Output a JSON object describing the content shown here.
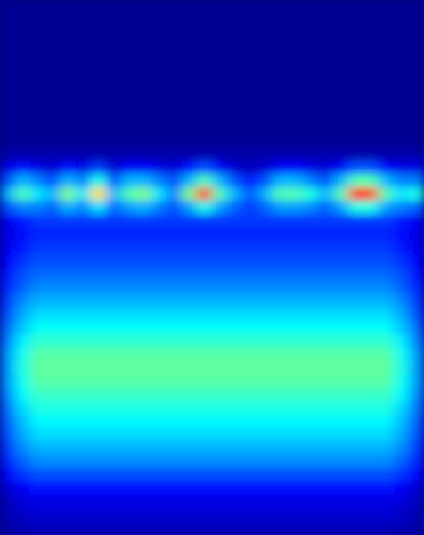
{
  "chart_data": {
    "type": "heatmap",
    "tick_labels": false,
    "zlim": [
      0,
      1
    ],
    "cells": [
      [
        0.02,
        0.02,
        0.02,
        0.02,
        0.02,
        0.02,
        0.02,
        0.02,
        0.02,
        0.02,
        0.02,
        0.02,
        0.02,
        0.02,
        0.02,
        0.02,
        0.02,
        0.02,
        0.02,
        0.02,
        0.02,
        0.02,
        0.02,
        0.02,
        0.02,
        0.02,
        0.02,
        0.02
      ],
      [
        0.02,
        0.02,
        0.02,
        0.02,
        0.02,
        0.02,
        0.02,
        0.02,
        0.02,
        0.02,
        0.02,
        0.02,
        0.02,
        0.02,
        0.02,
        0.02,
        0.02,
        0.02,
        0.02,
        0.02,
        0.02,
        0.02,
        0.02,
        0.02,
        0.02,
        0.02,
        0.02,
        0.02
      ],
      [
        0.02,
        0.02,
        0.02,
        0.02,
        0.02,
        0.02,
        0.02,
        0.02,
        0.02,
        0.02,
        0.02,
        0.02,
        0.02,
        0.02,
        0.02,
        0.02,
        0.02,
        0.02,
        0.02,
        0.02,
        0.02,
        0.02,
        0.02,
        0.02,
        0.02,
        0.02,
        0.02,
        0.02
      ],
      [
        0.02,
        0.02,
        0.02,
        0.02,
        0.02,
        0.02,
        0.02,
        0.02,
        0.02,
        0.02,
        0.02,
        0.02,
        0.02,
        0.02,
        0.02,
        0.02,
        0.02,
        0.02,
        0.02,
        0.02,
        0.02,
        0.02,
        0.02,
        0.02,
        0.02,
        0.02,
        0.02,
        0.02
      ],
      [
        0.02,
        0.02,
        0.02,
        0.02,
        0.02,
        0.02,
        0.02,
        0.02,
        0.02,
        0.02,
        0.02,
        0.02,
        0.02,
        0.02,
        0.02,
        0.02,
        0.02,
        0.02,
        0.02,
        0.02,
        0.02,
        0.02,
        0.02,
        0.02,
        0.02,
        0.02,
        0.02,
        0.02
      ],
      [
        0.02,
        0.02,
        0.02,
        0.02,
        0.02,
        0.02,
        0.02,
        0.02,
        0.02,
        0.02,
        0.02,
        0.02,
        0.02,
        0.02,
        0.02,
        0.02,
        0.02,
        0.02,
        0.02,
        0.02,
        0.02,
        0.02,
        0.02,
        0.02,
        0.02,
        0.02,
        0.02,
        0.02
      ],
      [
        0.02,
        0.02,
        0.02,
        0.02,
        0.02,
        0.02,
        0.02,
        0.02,
        0.02,
        0.02,
        0.02,
        0.02,
        0.02,
        0.02,
        0.02,
        0.02,
        0.02,
        0.02,
        0.02,
        0.02,
        0.02,
        0.02,
        0.02,
        0.02,
        0.02,
        0.02,
        0.02,
        0.02
      ],
      [
        0.02,
        0.02,
        0.02,
        0.02,
        0.02,
        0.02,
        0.02,
        0.02,
        0.02,
        0.02,
        0.02,
        0.02,
        0.02,
        0.02,
        0.02,
        0.02,
        0.02,
        0.02,
        0.02,
        0.02,
        0.02,
        0.02,
        0.02,
        0.02,
        0.02,
        0.02,
        0.02,
        0.02
      ],
      [
        0.02,
        0.02,
        0.02,
        0.02,
        0.02,
        0.02,
        0.02,
        0.02,
        0.02,
        0.02,
        0.02,
        0.02,
        0.02,
        0.02,
        0.02,
        0.02,
        0.02,
        0.02,
        0.02,
        0.02,
        0.02,
        0.02,
        0.02,
        0.02,
        0.02,
        0.02,
        0.02,
        0.02
      ],
      [
        0.02,
        0.02,
        0.02,
        0.02,
        0.02,
        0.02,
        0.02,
        0.02,
        0.02,
        0.02,
        0.02,
        0.02,
        0.02,
        0.02,
        0.02,
        0.02,
        0.02,
        0.02,
        0.02,
        0.02,
        0.02,
        0.02,
        0.02,
        0.02,
        0.02,
        0.02,
        0.02,
        0.02
      ],
      [
        0.02,
        0.02,
        0.02,
        0.02,
        0.02,
        0.02,
        0.02,
        0.02,
        0.02,
        0.02,
        0.02,
        0.02,
        0.02,
        0.02,
        0.02,
        0.02,
        0.02,
        0.02,
        0.02,
        0.02,
        0.02,
        0.02,
        0.02,
        0.02,
        0.02,
        0.02,
        0.02,
        0.02
      ],
      [
        0.04,
        0.04,
        0.04,
        0.04,
        0.04,
        0.04,
        0.04,
        0.04,
        0.04,
        0.04,
        0.04,
        0.04,
        0.04,
        0.04,
        0.04,
        0.04,
        0.04,
        0.04,
        0.04,
        0.04,
        0.04,
        0.04,
        0.04,
        0.04,
        0.04,
        0.04,
        0.04,
        0.04
      ],
      [
        0.1,
        0.14,
        0.1,
        0.08,
        0.14,
        0.1,
        0.18,
        0.08,
        0.12,
        0.12,
        0.1,
        0.08,
        0.14,
        0.2,
        0.12,
        0.08,
        0.06,
        0.08,
        0.12,
        0.12,
        0.1,
        0.08,
        0.12,
        0.2,
        0.2,
        0.12,
        0.1,
        0.1
      ],
      [
        0.2,
        0.3,
        0.25,
        0.2,
        0.3,
        0.25,
        0.4,
        0.2,
        0.3,
        0.3,
        0.25,
        0.2,
        0.3,
        0.45,
        0.3,
        0.2,
        0.15,
        0.2,
        0.3,
        0.3,
        0.25,
        0.2,
        0.3,
        0.45,
        0.45,
        0.3,
        0.25,
        0.25
      ],
      [
        0.3,
        0.45,
        0.35,
        0.3,
        0.5,
        0.35,
        0.65,
        0.3,
        0.45,
        0.5,
        0.35,
        0.25,
        0.5,
        0.85,
        0.45,
        0.3,
        0.2,
        0.3,
        0.45,
        0.45,
        0.4,
        0.3,
        0.45,
        0.85,
        0.8,
        0.45,
        0.35,
        0.4
      ],
      [
        0.2,
        0.25,
        0.25,
        0.22,
        0.3,
        0.25,
        0.35,
        0.22,
        0.28,
        0.3,
        0.25,
        0.2,
        0.28,
        0.4,
        0.28,
        0.22,
        0.18,
        0.22,
        0.28,
        0.28,
        0.26,
        0.22,
        0.28,
        0.4,
        0.4,
        0.28,
        0.25,
        0.22
      ],
      [
        0.11,
        0.15,
        0.18,
        0.18,
        0.18,
        0.18,
        0.18,
        0.18,
        0.18,
        0.18,
        0.18,
        0.18,
        0.18,
        0.18,
        0.18,
        0.18,
        0.18,
        0.18,
        0.18,
        0.18,
        0.18,
        0.18,
        0.18,
        0.18,
        0.18,
        0.18,
        0.15,
        0.11
      ],
      [
        0.1,
        0.14,
        0.16,
        0.16,
        0.16,
        0.16,
        0.16,
        0.16,
        0.16,
        0.16,
        0.16,
        0.16,
        0.16,
        0.16,
        0.16,
        0.16,
        0.16,
        0.16,
        0.16,
        0.16,
        0.16,
        0.16,
        0.16,
        0.16,
        0.16,
        0.16,
        0.14,
        0.1
      ],
      [
        0.11,
        0.15,
        0.18,
        0.18,
        0.18,
        0.18,
        0.18,
        0.18,
        0.18,
        0.18,
        0.18,
        0.18,
        0.18,
        0.18,
        0.18,
        0.18,
        0.18,
        0.18,
        0.18,
        0.18,
        0.18,
        0.18,
        0.18,
        0.18,
        0.18,
        0.18,
        0.15,
        0.11
      ],
      [
        0.12,
        0.17,
        0.2,
        0.2,
        0.2,
        0.2,
        0.2,
        0.2,
        0.2,
        0.2,
        0.2,
        0.2,
        0.2,
        0.2,
        0.2,
        0.2,
        0.2,
        0.2,
        0.2,
        0.2,
        0.2,
        0.2,
        0.2,
        0.2,
        0.2,
        0.2,
        0.17,
        0.12
      ],
      [
        0.14,
        0.2,
        0.23,
        0.23,
        0.23,
        0.23,
        0.23,
        0.23,
        0.23,
        0.23,
        0.23,
        0.23,
        0.23,
        0.23,
        0.23,
        0.23,
        0.23,
        0.23,
        0.23,
        0.23,
        0.23,
        0.23,
        0.23,
        0.23,
        0.23,
        0.23,
        0.2,
        0.14
      ],
      [
        0.16,
        0.22,
        0.26,
        0.26,
        0.26,
        0.26,
        0.26,
        0.26,
        0.26,
        0.26,
        0.26,
        0.26,
        0.26,
        0.26,
        0.26,
        0.26,
        0.26,
        0.26,
        0.26,
        0.26,
        0.26,
        0.26,
        0.26,
        0.26,
        0.26,
        0.26,
        0.22,
        0.16
      ],
      [
        0.18,
        0.26,
        0.3,
        0.3,
        0.3,
        0.3,
        0.3,
        0.3,
        0.3,
        0.3,
        0.3,
        0.3,
        0.3,
        0.3,
        0.3,
        0.3,
        0.3,
        0.3,
        0.3,
        0.3,
        0.3,
        0.3,
        0.3,
        0.3,
        0.3,
        0.3,
        0.26,
        0.18
      ],
      [
        0.2,
        0.29,
        0.34,
        0.34,
        0.34,
        0.34,
        0.34,
        0.34,
        0.34,
        0.34,
        0.34,
        0.34,
        0.34,
        0.34,
        0.34,
        0.34,
        0.34,
        0.34,
        0.34,
        0.34,
        0.34,
        0.34,
        0.34,
        0.34,
        0.34,
        0.34,
        0.29,
        0.2
      ],
      [
        0.23,
        0.32,
        0.38,
        0.38,
        0.38,
        0.38,
        0.38,
        0.38,
        0.38,
        0.38,
        0.38,
        0.38,
        0.38,
        0.38,
        0.38,
        0.38,
        0.38,
        0.38,
        0.38,
        0.38,
        0.38,
        0.38,
        0.38,
        0.38,
        0.38,
        0.38,
        0.32,
        0.23
      ],
      [
        0.25,
        0.36,
        0.42,
        0.42,
        0.42,
        0.42,
        0.42,
        0.42,
        0.42,
        0.42,
        0.42,
        0.42,
        0.42,
        0.42,
        0.42,
        0.42,
        0.42,
        0.42,
        0.42,
        0.42,
        0.42,
        0.42,
        0.42,
        0.42,
        0.42,
        0.42,
        0.36,
        0.25
      ],
      [
        0.28,
        0.39,
        0.46,
        0.46,
        0.46,
        0.46,
        0.46,
        0.46,
        0.46,
        0.46,
        0.46,
        0.46,
        0.46,
        0.46,
        0.46,
        0.46,
        0.46,
        0.46,
        0.46,
        0.46,
        0.46,
        0.46,
        0.46,
        0.46,
        0.46,
        0.46,
        0.39,
        0.28
      ],
      [
        0.28,
        0.4,
        0.47,
        0.47,
        0.47,
        0.47,
        0.47,
        0.47,
        0.47,
        0.47,
        0.47,
        0.47,
        0.47,
        0.47,
        0.47,
        0.47,
        0.47,
        0.47,
        0.47,
        0.47,
        0.47,
        0.47,
        0.47,
        0.47,
        0.47,
        0.47,
        0.4,
        0.28
      ],
      [
        0.28,
        0.39,
        0.46,
        0.46,
        0.46,
        0.46,
        0.46,
        0.46,
        0.46,
        0.46,
        0.46,
        0.46,
        0.46,
        0.46,
        0.46,
        0.46,
        0.46,
        0.46,
        0.46,
        0.46,
        0.46,
        0.46,
        0.46,
        0.46,
        0.46,
        0.46,
        0.39,
        0.28
      ],
      [
        0.26,
        0.37,
        0.43,
        0.43,
        0.43,
        0.43,
        0.43,
        0.43,
        0.43,
        0.43,
        0.43,
        0.43,
        0.43,
        0.43,
        0.43,
        0.43,
        0.43,
        0.43,
        0.43,
        0.43,
        0.43,
        0.43,
        0.43,
        0.43,
        0.43,
        0.43,
        0.37,
        0.26
      ],
      [
        0.24,
        0.34,
        0.4,
        0.4,
        0.4,
        0.4,
        0.4,
        0.4,
        0.4,
        0.4,
        0.4,
        0.4,
        0.4,
        0.4,
        0.4,
        0.4,
        0.4,
        0.4,
        0.4,
        0.4,
        0.4,
        0.4,
        0.4,
        0.4,
        0.4,
        0.4,
        0.34,
        0.24
      ],
      [
        0.22,
        0.31,
        0.37,
        0.37,
        0.37,
        0.37,
        0.37,
        0.37,
        0.37,
        0.37,
        0.37,
        0.37,
        0.37,
        0.37,
        0.37,
        0.37,
        0.37,
        0.37,
        0.37,
        0.37,
        0.37,
        0.37,
        0.37,
        0.37,
        0.37,
        0.37,
        0.31,
        0.22
      ],
      [
        0.2,
        0.29,
        0.34,
        0.34,
        0.34,
        0.34,
        0.34,
        0.34,
        0.34,
        0.34,
        0.34,
        0.34,
        0.34,
        0.34,
        0.34,
        0.34,
        0.34,
        0.34,
        0.34,
        0.34,
        0.34,
        0.34,
        0.34,
        0.34,
        0.34,
        0.34,
        0.29,
        0.2
      ],
      [
        0.18,
        0.26,
        0.3,
        0.3,
        0.3,
        0.3,
        0.3,
        0.3,
        0.3,
        0.3,
        0.3,
        0.3,
        0.3,
        0.3,
        0.3,
        0.3,
        0.3,
        0.3,
        0.3,
        0.3,
        0.3,
        0.3,
        0.3,
        0.3,
        0.3,
        0.3,
        0.26,
        0.18
      ],
      [
        0.16,
        0.22,
        0.26,
        0.26,
        0.26,
        0.26,
        0.26,
        0.26,
        0.26,
        0.26,
        0.26,
        0.26,
        0.26,
        0.26,
        0.26,
        0.26,
        0.26,
        0.26,
        0.26,
        0.26,
        0.26,
        0.26,
        0.26,
        0.26,
        0.26,
        0.26,
        0.22,
        0.16
      ],
      [
        0.12,
        0.17,
        0.2,
        0.2,
        0.2,
        0.2,
        0.2,
        0.2,
        0.2,
        0.2,
        0.2,
        0.2,
        0.2,
        0.2,
        0.2,
        0.2,
        0.2,
        0.2,
        0.2,
        0.2,
        0.2,
        0.2,
        0.2,
        0.2,
        0.2,
        0.2,
        0.17,
        0.12
      ],
      [
        0.08,
        0.12,
        0.14,
        0.14,
        0.14,
        0.14,
        0.14,
        0.14,
        0.14,
        0.14,
        0.14,
        0.14,
        0.14,
        0.14,
        0.14,
        0.14,
        0.14,
        0.14,
        0.14,
        0.14,
        0.14,
        0.14,
        0.14,
        0.14,
        0.14,
        0.14,
        0.12,
        0.08
      ],
      [
        0.06,
        0.09,
        0.1,
        0.1,
        0.1,
        0.1,
        0.1,
        0.1,
        0.1,
        0.1,
        0.1,
        0.1,
        0.1,
        0.1,
        0.1,
        0.1,
        0.1,
        0.1,
        0.1,
        0.1,
        0.1,
        0.1,
        0.1,
        0.1,
        0.1,
        0.1,
        0.09,
        0.06
      ],
      [
        0.05,
        0.07,
        0.08,
        0.08,
        0.08,
        0.08,
        0.08,
        0.08,
        0.08,
        0.08,
        0.08,
        0.08,
        0.08,
        0.08,
        0.08,
        0.08,
        0.08,
        0.08,
        0.08,
        0.08,
        0.08,
        0.08,
        0.08,
        0.08,
        0.08,
        0.08,
        0.07,
        0.05
      ],
      [
        0.04,
        0.05,
        0.06,
        0.06,
        0.06,
        0.06,
        0.06,
        0.06,
        0.06,
        0.06,
        0.06,
        0.06,
        0.06,
        0.06,
        0.06,
        0.06,
        0.06,
        0.06,
        0.06,
        0.06,
        0.06,
        0.06,
        0.06,
        0.06,
        0.06,
        0.06,
        0.05,
        0.04
      ]
    ]
  }
}
